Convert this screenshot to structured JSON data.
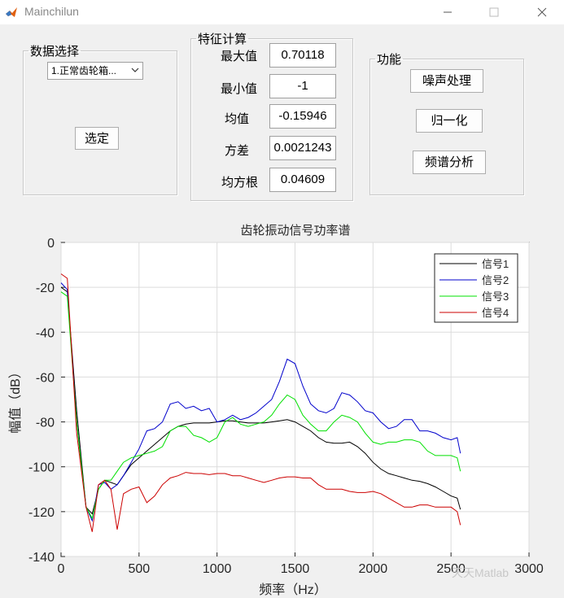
{
  "window": {
    "title": "Mainchilun",
    "icon": "matlab-logo-icon",
    "controls": [
      "minimize-icon",
      "maximize-icon",
      "close-icon"
    ]
  },
  "data_panel": {
    "title": "数据选择",
    "dropdown_value": "1.正常齿轮箱...",
    "select_button": "选定"
  },
  "feature_panel": {
    "title": "特征计算",
    "rows": [
      {
        "label": "最大值",
        "value": "0.70118"
      },
      {
        "label": "最小值",
        "value": "-1"
      },
      {
        "label": "均值",
        "value": "-0.15946"
      },
      {
        "label": "方差",
        "value": "0.0021243"
      },
      {
        "label": "均方根",
        "value": "0.04609"
      }
    ]
  },
  "function_panel": {
    "title": "功能",
    "buttons": [
      "噪声处理",
      "归一化",
      "频谱分析"
    ]
  },
  "watermark": "天天Matlab",
  "colors": {
    "background": "#f0f0f0",
    "signal1": "#000000",
    "signal2": "#0000cc",
    "signal3": "#00e000",
    "signal4": "#cc0000"
  },
  "chart_data": {
    "type": "line",
    "title": "齿轮振动信号功率谱",
    "xlabel": "频率（Hz）",
    "ylabel": "幅值（dB）",
    "xlim": [
      0,
      3000
    ],
    "ylim": [
      -140,
      0
    ],
    "xticks": [
      0,
      500,
      1000,
      1500,
      2000,
      2500,
      3000
    ],
    "yticks": [
      0,
      -20,
      -40,
      -60,
      -80,
      -100,
      -120,
      -140
    ],
    "grid": true,
    "legend_position": "top-right",
    "series": [
      {
        "name": "信号1",
        "color": "#000000",
        "x": [
          0,
          40,
          100,
          160,
          200,
          240,
          280,
          320,
          360,
          400,
          450,
          500,
          550,
          600,
          650,
          700,
          750,
          800,
          850,
          900,
          950,
          1000,
          1050,
          1100,
          1150,
          1200,
          1250,
          1300,
          1350,
          1400,
          1450,
          1500,
          1550,
          1600,
          1650,
          1700,
          1750,
          1800,
          1850,
          1900,
          1950,
          2000,
          2050,
          2100,
          2150,
          2200,
          2250,
          2300,
          2350,
          2400,
          2450,
          2500,
          2540,
          2560
        ],
        "y": [
          -20,
          -22,
          -75,
          -118,
          -121,
          -110,
          -106,
          -107,
          -108,
          -104,
          -99,
          -96,
          -93,
          -90,
          -87,
          -84,
          -82,
          -81,
          -80.5,
          -80.5,
          -80.5,
          -80,
          -79.5,
          -79.5,
          -80,
          -80.5,
          -80.5,
          -80.5,
          -80,
          -79.5,
          -79,
          -80,
          -82,
          -84,
          -87,
          -89,
          -89.5,
          -89.5,
          -89,
          -91,
          -94,
          -98,
          -101,
          -103,
          -104,
          -105,
          -106,
          -106.5,
          -107.5,
          -109,
          -111,
          -113,
          -114,
          -119
        ]
      },
      {
        "name": "信号2",
        "color": "#0000cc",
        "x": [
          0,
          40,
          100,
          160,
          200,
          240,
          280,
          320,
          360,
          400,
          450,
          500,
          550,
          600,
          650,
          700,
          750,
          800,
          850,
          900,
          950,
          1000,
          1050,
          1100,
          1150,
          1200,
          1250,
          1300,
          1350,
          1400,
          1450,
          1500,
          1550,
          1600,
          1650,
          1700,
          1750,
          1800,
          1850,
          1900,
          1950,
          2000,
          2050,
          2100,
          2150,
          2200,
          2250,
          2300,
          2350,
          2400,
          2450,
          2500,
          2540,
          2560
        ],
        "y": [
          -18,
          -21,
          -80,
          -118,
          -124,
          -108,
          -107,
          -110,
          -108,
          -104,
          -98,
          -92,
          -84,
          -83,
          -80,
          -72,
          -71,
          -74,
          -73,
          -75,
          -74,
          -80,
          -79,
          -77,
          -79,
          -78,
          -76,
          -73,
          -70,
          -62,
          -52,
          -54,
          -64,
          -72,
          -75,
          -76,
          -74,
          -67,
          -68,
          -71,
          -75,
          -76,
          -80,
          -83,
          -82,
          -79,
          -79,
          -84,
          -84,
          -85,
          -87,
          -88,
          -87,
          -94
        ]
      },
      {
        "name": "信号3",
        "color": "#00e000",
        "x": [
          0,
          40,
          100,
          160,
          200,
          240,
          280,
          320,
          360,
          400,
          450,
          500,
          550,
          600,
          650,
          700,
          750,
          800,
          850,
          900,
          950,
          1000,
          1050,
          1100,
          1150,
          1200,
          1250,
          1300,
          1350,
          1400,
          1450,
          1500,
          1550,
          1600,
          1650,
          1700,
          1750,
          1800,
          1850,
          1900,
          1950,
          2000,
          2050,
          2100,
          2150,
          2200,
          2250,
          2300,
          2350,
          2400,
          2450,
          2500,
          2540,
          2560
        ],
        "y": [
          -22,
          -24,
          -80,
          -118,
          -123,
          -110,
          -106,
          -106,
          -102,
          -98,
          -96,
          -95,
          -94,
          -93,
          -91,
          -84,
          -82,
          -82,
          -86,
          -87,
          -89,
          -87,
          -80,
          -78,
          -81,
          -82,
          -81,
          -80,
          -77,
          -72,
          -68,
          -70,
          -77,
          -81,
          -84,
          -84,
          -80,
          -77,
          -78,
          -80,
          -85,
          -89,
          -90,
          -89,
          -89,
          -88,
          -88,
          -89,
          -93,
          -95,
          -95,
          -95,
          -96,
          -102
        ]
      },
      {
        "name": "信号4",
        "color": "#cc0000",
        "x": [
          0,
          40,
          100,
          160,
          200,
          240,
          280,
          320,
          360,
          400,
          450,
          500,
          550,
          600,
          650,
          700,
          750,
          800,
          850,
          900,
          950,
          1000,
          1050,
          1100,
          1150,
          1200,
          1250,
          1300,
          1350,
          1400,
          1450,
          1500,
          1550,
          1600,
          1650,
          1700,
          1750,
          1800,
          1850,
          1900,
          1950,
          2000,
          2050,
          2100,
          2150,
          2200,
          2250,
          2300,
          2350,
          2400,
          2450,
          2500,
          2540,
          2560
        ],
        "y": [
          -14,
          -16,
          -85,
          -118,
          -129,
          -108,
          -106,
          -110,
          -128,
          -112,
          -110,
          -109,
          -116,
          -113,
          -108,
          -105,
          -104,
          -102.5,
          -103,
          -103,
          -103.5,
          -103,
          -103,
          -104,
          -104,
          -105,
          -106,
          -107,
          -106,
          -105,
          -104.5,
          -104.5,
          -105,
          -105,
          -108,
          -110,
          -110,
          -110,
          -111,
          -111.5,
          -111.5,
          -111,
          -112,
          -114,
          -116,
          -118,
          -118,
          -117,
          -117,
          -118,
          -118,
          -118,
          -120,
          -126
        ]
      }
    ]
  }
}
